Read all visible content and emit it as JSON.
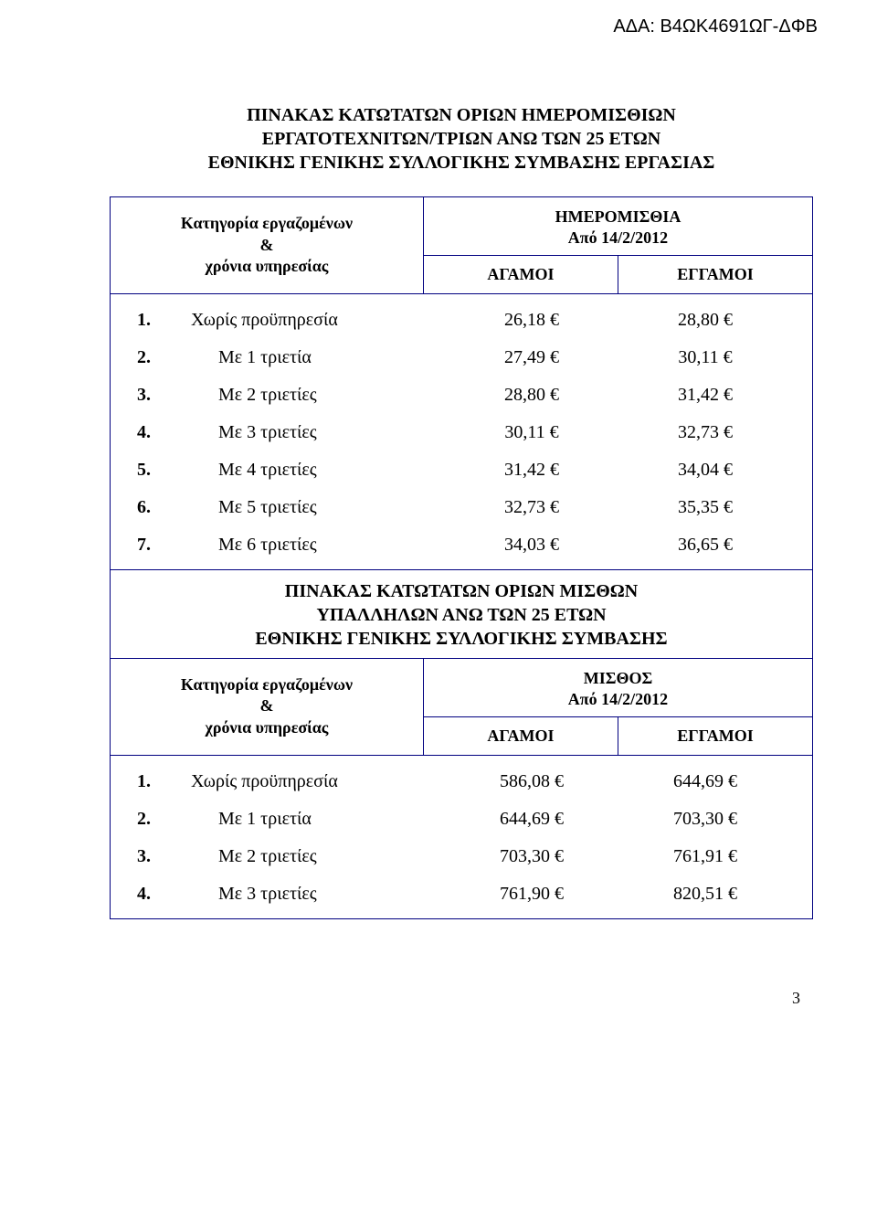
{
  "doc_id": "ΑΔΑ: Β4ΩΚ4691ΩΓ-ΔΦΒ",
  "title1": {
    "line1": "ΠΙΝΑΚΑΣ ΚΑΤΩΤΑΤΩΝ ΟΡΙΩΝ ΗΜΕΡΟΜΙΣΘΙΩΝ",
    "line2": "ΕΡΓΑΤΟΤΕΧΝΙΤΩΝ/ΤΡΙΩΝ ΑΝΩ ΤΩΝ 25 ΕΤΩΝ",
    "line3": "ΕΘΝΙΚΗΣ ΓΕΝΙΚΗΣ ΣΥΛΛΟΓΙΚΗΣ ΣΥΜΒΑΣΗΣ ΕΡΓΑΣΙΑΣ"
  },
  "table1": {
    "head_left_line1": "Κατηγορία εργαζομένων",
    "head_left_line2": "&",
    "head_left_line3": "χρόνια υπηρεσίας",
    "head_right_top_line1": "ΗΜΕΡΟΜΙΣΘΙΑ",
    "head_right_top_line2": "Από 14/2/2012",
    "col1": "ΑΓΑΜΟΙ",
    "col2": "ΕΓΓΑΜΟΙ",
    "rows": [
      {
        "n": "1.",
        "label": "Χωρίς προϋπηρεσία",
        "v1": "26,18 €",
        "v2": "28,80 €",
        "first": true
      },
      {
        "n": "2.",
        "label": "Με 1 τριετία",
        "v1": "27,49 €",
        "v2": "30,11 €"
      },
      {
        "n": "3.",
        "label": "Με 2 τριετίες",
        "v1": "28,80 €",
        "v2": "31,42 €"
      },
      {
        "n": "4.",
        "label": "Με 3 τριετίες",
        "v1": "30,11 €",
        "v2": "32,73 €"
      },
      {
        "n": "5.",
        "label": "Με 4 τριετίες",
        "v1": "31,42 €",
        "v2": "34,04 €"
      },
      {
        "n": "6.",
        "label": "Με 5 τριετίες",
        "v1": "32,73 €",
        "v2": "35,35 €"
      },
      {
        "n": "7.",
        "label": "Με 6 τριετίες",
        "v1": "34,03 €",
        "v2": "36,65 €"
      }
    ]
  },
  "title2": {
    "line1": "ΠΙΝΑΚΑΣ  ΚΑΤΩΤΑΤΩΝ  ΟΡΙΩΝ  ΜΙΣΘΩΝ",
    "line2": "ΥΠΑΛΛΗΛΩΝ ΑΝΩ ΤΩΝ 25 ΕΤΩΝ",
    "line3": "ΕΘΝΙΚΗΣ ΓΕΝΙΚΗΣ ΣΥΛΛΟΓΙΚΗΣ ΣΥΜΒΑΣΗΣ"
  },
  "table2": {
    "head_left_line1": "Κατηγορία εργαζομένων",
    "head_left_line2": "&",
    "head_left_line3": "χρόνια υπηρεσίας",
    "head_right_top_line1": "ΜΙΣΘΟΣ",
    "head_right_top_line2": "Από 14/2/2012",
    "col1": "ΑΓΑΜΟΙ",
    "col2": "ΕΓΓΑΜΟΙ",
    "rows": [
      {
        "n": "1.",
        "label": "Χωρίς προϋπηρεσία",
        "v1": "586,08 €",
        "v2": "644,69 €",
        "first": true
      },
      {
        "n": "2.",
        "label": "Με 1 τριετία",
        "v1": "644,69 €",
        "v2": "703,30 €"
      },
      {
        "n": "3.",
        "label": "Με 2 τριετίες",
        "v1": "703,30 €",
        "v2": "761,91 €"
      },
      {
        "n": "4.",
        "label": "Με 3 τριετίες",
        "v1": "761,90 €",
        "v2": "820,51 €"
      }
    ]
  },
  "page_number": "3",
  "colors": {
    "border": "#000080",
    "text": "#000000",
    "background": "#ffffff"
  }
}
